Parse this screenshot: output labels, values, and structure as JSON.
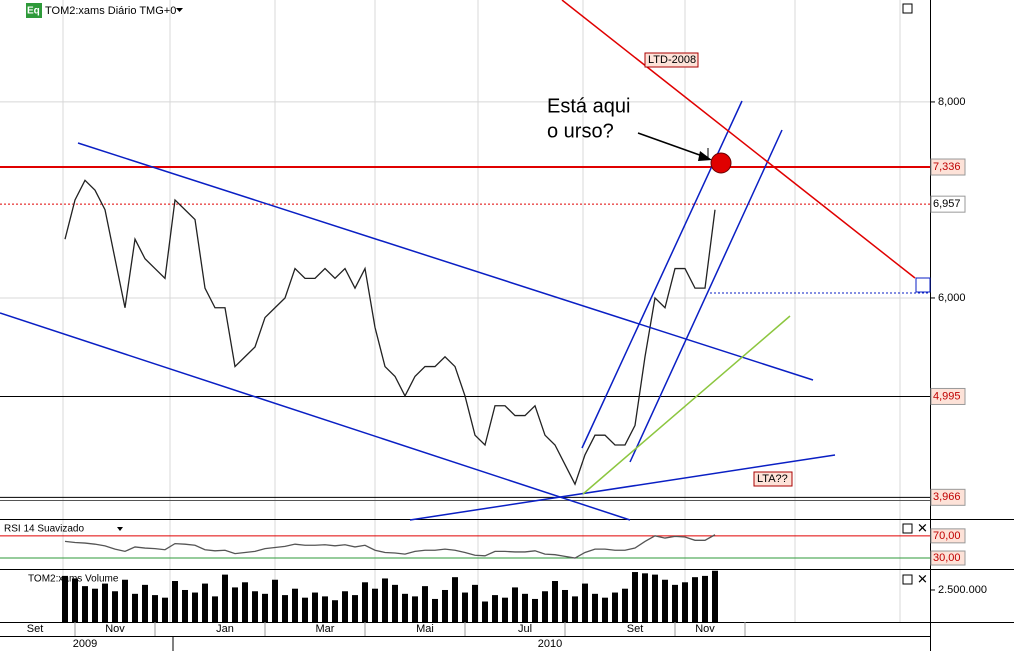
{
  "chart_data": [
    {
      "type": "line",
      "title": "TOM2:xams Diário TMG+0",
      "badge": "Eq",
      "categories": [
        null,
        null,
        "Set",
        null,
        null,
        null,
        null,
        null,
        null,
        null,
        "Nov",
        null,
        null,
        null,
        null,
        null,
        null,
        null,
        null,
        null,
        null,
        "Jan",
        null,
        null,
        null,
        null,
        null,
        null,
        null,
        null,
        null,
        "Mar",
        null,
        null,
        null,
        null,
        null,
        null,
        null,
        null,
        null,
        "Mai",
        null,
        null,
        null,
        null,
        null,
        null,
        null,
        null,
        null,
        "Jul",
        null,
        null,
        null,
        null,
        null,
        null,
        null,
        null,
        null,
        null,
        "Set",
        null,
        null,
        null,
        null,
        null,
        null,
        "Nov",
        null
      ],
      "years": [
        "2009",
        "2010"
      ],
      "series": [
        {
          "name": "TOM2:xams",
          "color": "#222222",
          "values": [
            null,
            null,
            null,
            null,
            null,
            6.6,
            7.0,
            7.2,
            7.1,
            6.9,
            6.4,
            5.9,
            6.6,
            6.4,
            6.3,
            6.2,
            7.0,
            6.9,
            6.8,
            6.1,
            5.9,
            5.9,
            5.3,
            5.4,
            5.5,
            5.8,
            5.9,
            6.0,
            6.3,
            6.2,
            6.2,
            6.3,
            6.2,
            6.3,
            6.1,
            6.3,
            5.7,
            5.3,
            5.2,
            5.0,
            5.2,
            5.3,
            5.3,
            5.4,
            5.3,
            5.0,
            4.6,
            4.5,
            4.9,
            4.9,
            4.8,
            4.8,
            4.9,
            4.6,
            4.5,
            4.3,
            4.1,
            4.4,
            4.6,
            4.6,
            4.5,
            4.5,
            4.7,
            5.4,
            6.0,
            5.9,
            6.3,
            6.3,
            6.1,
            6.1,
            6.9
          ]
        }
      ],
      "ylim": [
        3.755,
        9.04
      ],
      "yticks": [
        {
          "value": 8,
          "label": "8,000"
        },
        {
          "value": 6,
          "label": "6,000"
        }
      ],
      "levels": [
        {
          "value": 7.336,
          "label": "7,336",
          "color": "#e00000",
          "style": "solid"
        },
        {
          "value": 6.957,
          "label": "6,957",
          "color": "#e00000",
          "style": "dotted"
        },
        {
          "value": 4.995,
          "label": "4,995",
          "color": "#000000",
          "style": "solid"
        },
        {
          "value": 3.966,
          "label": "3,966",
          "color": "#000000",
          "style": "solid"
        }
      ],
      "annotations": {
        "ltd": "LTD-2008",
        "lta": "LTA??",
        "note_line1": "Está aqui",
        "note_line2": "o urso?"
      },
      "grid": true
    },
    {
      "type": "line",
      "title": "RSI 14 Suavizado",
      "series": [
        {
          "name": "RSI 14",
          "color": "#555555",
          "values": [
            null,
            null,
            null,
            null,
            null,
            60,
            58,
            57,
            55,
            52,
            46,
            42,
            50,
            48,
            47,
            45,
            56,
            55,
            53,
            45,
            43,
            44,
            38,
            40,
            42,
            47,
            49,
            51,
            55,
            53,
            53,
            54,
            52,
            54,
            50,
            53,
            44,
            40,
            39,
            37,
            42,
            44,
            44,
            46,
            44,
            40,
            35,
            34,
            42,
            42,
            41,
            41,
            43,
            37,
            36,
            33,
            30,
            40,
            46,
            46,
            44,
            44,
            48,
            60,
            70,
            66,
            69,
            68,
            62,
            62,
            72
          ]
        }
      ],
      "ylim": [
        12,
        95
      ],
      "yticks": [
        {
          "value": 70,
          "label": "70,00"
        },
        {
          "value": 30,
          "label": "30,00"
        }
      ]
    },
    {
      "type": "bar",
      "title": "TOM2:xams Volume",
      "color": "#000000",
      "values": [
        null,
        null,
        null,
        null,
        null,
        3600000,
        3400000,
        2800000,
        2600000,
        3000000,
        2400000,
        3300000,
        2200000,
        2900000,
        2100000,
        1900000,
        3200000,
        2500000,
        2300000,
        3000000,
        2000000,
        3700000,
        2700000,
        3100000,
        2400000,
        2200000,
        3300000,
        2100000,
        2600000,
        1900000,
        2300000,
        2000000,
        1700000,
        2400000,
        2100000,
        3100000,
        2600000,
        3400000,
        2900000,
        2200000,
        2000000,
        2800000,
        1800000,
        2500000,
        3500000,
        2300000,
        2900000,
        1600000,
        2100000,
        1900000,
        2700000,
        2200000,
        1800000,
        2400000,
        3200000,
        2500000,
        2000000,
        3000000,
        2200000,
        1900000,
        2300000,
        2600000,
        3900000,
        3800000,
        3700000,
        3300000,
        2900000,
        3100000,
        3500000,
        3600000,
        4000000
      ],
      "ylim": [
        0,
        4060000
      ],
      "yticks": [
        {
          "value": 2500000,
          "label": "2.500.000"
        }
      ]
    }
  ]
}
